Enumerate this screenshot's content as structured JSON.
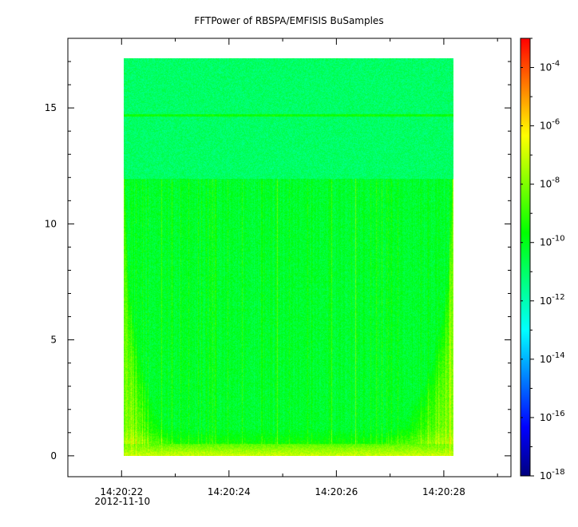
{
  "chart_data": {
    "type": "heatmap",
    "title": "FFTPower of RBSPA/EMFISIS  BuSamples",
    "xlabel": "",
    "ylabel": "",
    "x_ticks": [
      {
        "label": "14:20:22",
        "sublabel": "2012-11-10",
        "t": 22
      },
      {
        "label": "14:20:24",
        "sublabel": "",
        "t": 24
      },
      {
        "label": "14:20:26",
        "sublabel": "",
        "t": 26
      },
      {
        "label": "14:20:28",
        "sublabel": "",
        "t": 28
      }
    ],
    "x_minor_ticks": [
      21,
      23,
      25,
      27,
      29
    ],
    "xlim": [
      21.0,
      29.25
    ],
    "data_x_range": [
      22.25,
      28.2
    ],
    "ylim": [
      -0.9,
      18.0
    ],
    "data_y_range": [
      0.0,
      17.5
    ],
    "y_ticks": [
      0,
      5,
      10,
      15
    ],
    "y_minor_ticks": [
      1,
      2,
      3,
      4,
      6,
      7,
      8,
      9,
      11,
      12,
      13,
      14,
      16,
      17
    ],
    "colorbar": {
      "scale": "log",
      "range": [
        1e-18,
        0.001
      ],
      "tick_exponents": [
        -18,
        -16,
        -14,
        -12,
        -10,
        -8,
        -6,
        -4
      ],
      "tick_base": "10",
      "colormap": [
        "#00007f",
        "#0000ff",
        "#007fff",
        "#00ffff",
        "#00ff7f",
        "#00ff00",
        "#7fff00",
        "#ffff00",
        "#ff7f00",
        "#ff0000"
      ]
    },
    "features": {
      "background_log_power_above_12": -11.0,
      "background_log_power_below_12": -10.3,
      "band_boundary_y": 12.2,
      "line_feature_y": 15.0,
      "line_feature_log_power": -9.6,
      "low_freq_log_power": -7.0,
      "emission_left_t": [
        22.25,
        23.2
      ],
      "emission_right_t": [
        27.0,
        28.2
      ]
    }
  }
}
